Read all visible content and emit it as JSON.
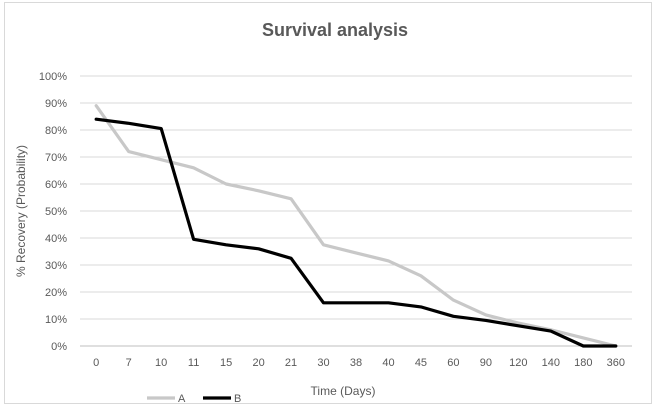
{
  "chart_data": {
    "type": "line",
    "title": "Survival analysis",
    "xlabel": "Time (Days)",
    "ylabel": "% Recovery (Probability)",
    "categories": [
      "0",
      "7",
      "10",
      "11",
      "15",
      "20",
      "21",
      "30",
      "38",
      "40",
      "45",
      "60",
      "90",
      "120",
      "140",
      "180",
      "360"
    ],
    "ylim": [
      0,
      100
    ],
    "yticks": [
      "0%",
      "10%",
      "20%",
      "30%",
      "40%",
      "50%",
      "60%",
      "70%",
      "80%",
      "90%",
      "100%"
    ],
    "grid": true,
    "legend_position": "bottom-left",
    "series": [
      {
        "name": "A",
        "color": "#c8c8c8",
        "values": [
          89,
          72,
          69,
          66,
          60,
          57.5,
          54.5,
          37.5,
          34.5,
          31.5,
          26,
          17,
          11.5,
          8.5,
          6,
          3,
          0
        ]
      },
      {
        "name": "B",
        "color": "#000000",
        "values": [
          84,
          82.5,
          80.5,
          39.5,
          37.5,
          36,
          32.5,
          16,
          16,
          16,
          14.5,
          11,
          9.5,
          7.5,
          5.5,
          0,
          0
        ]
      }
    ]
  }
}
